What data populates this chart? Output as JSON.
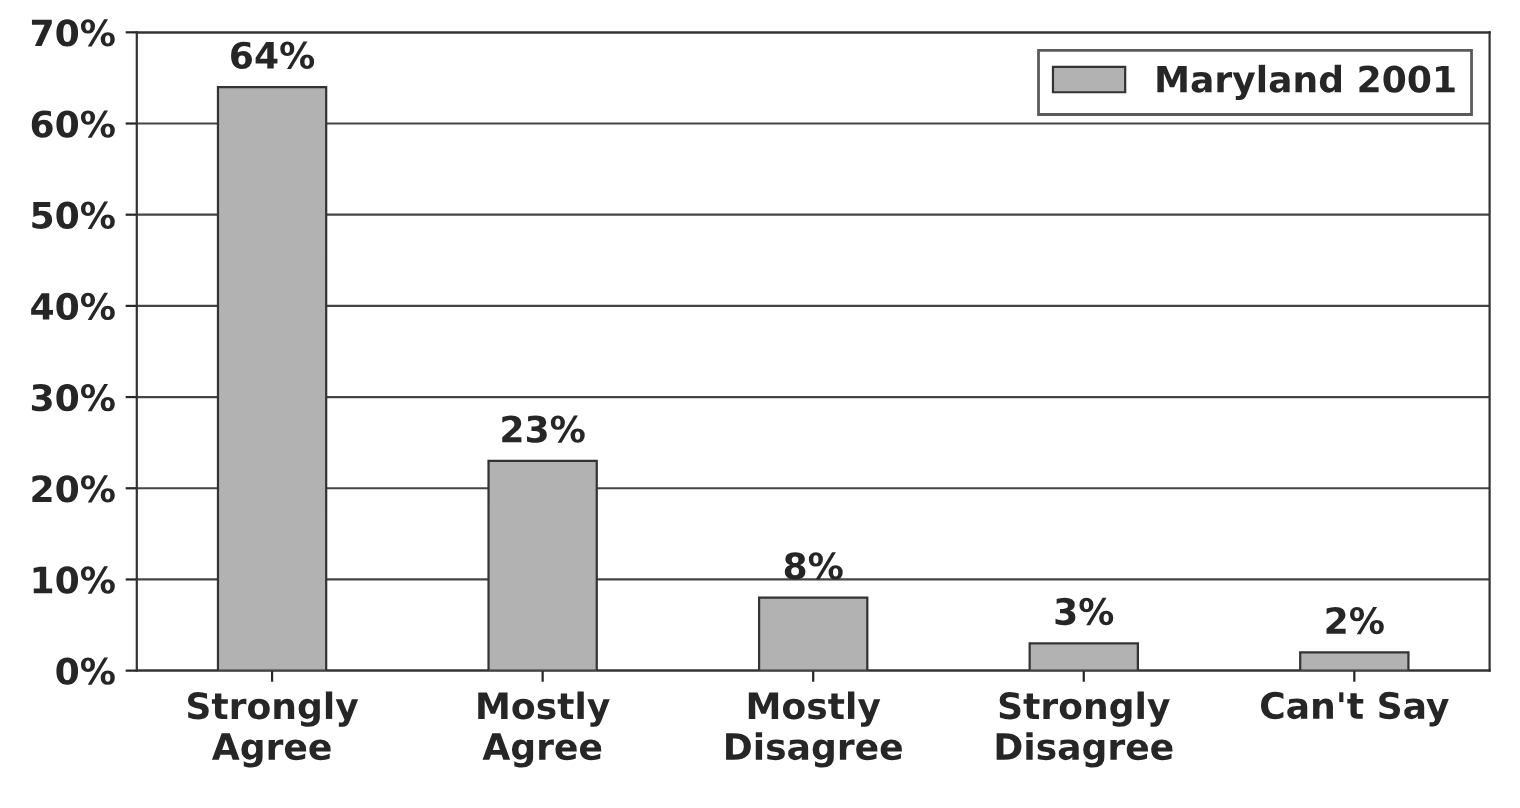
{
  "chart_data": {
    "type": "bar",
    "categories": [
      "Strongly\nAgree",
      "Mostly\nAgree",
      "Mostly\nDisagree",
      "Strongly\nDisagree",
      "Can't Say"
    ],
    "series": [
      {
        "name": "Maryland 2001",
        "color": "#b2b2b2",
        "values": [
          64,
          23,
          8,
          3,
          2
        ],
        "value_labels": [
          "64%",
          "23%",
          "8%",
          "3%",
          "2%"
        ]
      }
    ],
    "ylim": [
      0,
      70
    ],
    "yticks": [
      {
        "value": 0,
        "label": "0%"
      },
      {
        "value": 10,
        "label": "10%"
      },
      {
        "value": 20,
        "label": "20%"
      },
      {
        "value": 30,
        "label": "30%"
      },
      {
        "value": 40,
        "label": "40%"
      },
      {
        "value": 50,
        "label": "50%"
      },
      {
        "value": 60,
        "label": "60%"
      },
      {
        "value": 70,
        "label": "70%"
      }
    ],
    "grid": "y",
    "legend": "top right"
  }
}
